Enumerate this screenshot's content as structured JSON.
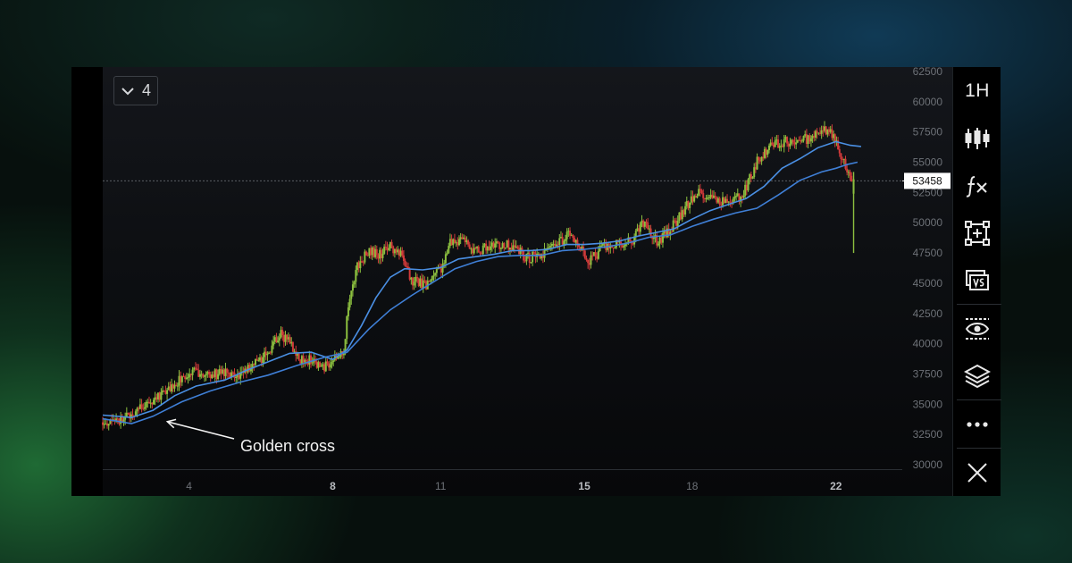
{
  "collapse_button": {
    "count": "4"
  },
  "toolbar": {
    "timeframe": "1H",
    "tools": [
      "candles-icon",
      "fx-icon",
      "crop-add-icon",
      "compare-icon",
      "visibility-icon",
      "layers-icon",
      "more-icon",
      "close-icon"
    ]
  },
  "colors": {
    "bull": "#8cbf3f",
    "bear": "#d23a3a",
    "ma_fast": "#4a8fe3",
    "ma_slow": "#3f7fd6",
    "axis_text": "#6d7177"
  },
  "chart_data": {
    "type": "candlestick",
    "title": "",
    "xlabel": "",
    "ylabel": "",
    "ylim": [
      30000,
      62500
    ],
    "grid": false,
    "y_ticks": [
      "62500",
      "60000",
      "57500",
      "55000",
      "52500",
      "50000",
      "47500",
      "45000",
      "42500",
      "40000",
      "37500",
      "35000",
      "32500",
      "30000"
    ],
    "x_ticks": [
      {
        "label": "4",
        "day": 4,
        "bold": false
      },
      {
        "label": "8",
        "day": 8,
        "bold": true
      },
      {
        "label": "11",
        "day": 11,
        "bold": false
      },
      {
        "label": "15",
        "day": 15,
        "bold": true
      },
      {
        "label": "18",
        "day": 18,
        "bold": false
      },
      {
        "label": "22",
        "day": 22,
        "bold": true
      }
    ],
    "x_range_days": [
      1.6,
      23.1
    ],
    "current_price": "53458",
    "annotations": [
      {
        "text": "Golden cross",
        "day": 3.3,
        "value": 34000
      }
    ],
    "path": [
      [
        1.6,
        33500
      ],
      [
        2.2,
        33800
      ],
      [
        2.6,
        34500
      ],
      [
        3.0,
        35300
      ],
      [
        3.4,
        36000
      ],
      [
        3.8,
        37200
      ],
      [
        4.2,
        37700
      ],
      [
        4.6,
        37400
      ],
      [
        5.0,
        37600
      ],
      [
        5.4,
        37400
      ],
      [
        5.8,
        38200
      ],
      [
        6.2,
        39200
      ],
      [
        6.5,
        40800
      ],
      [
        6.8,
        40300
      ],
      [
        7.1,
        38500
      ],
      [
        7.4,
        38800
      ],
      [
        7.7,
        38000
      ],
      [
        8.0,
        38700
      ],
      [
        8.3,
        39300
      ],
      [
        8.45,
        43500
      ],
      [
        8.7,
        46500
      ],
      [
        9.0,
        47800
      ],
      [
        9.3,
        47300
      ],
      [
        9.6,
        48000
      ],
      [
        9.9,
        47400
      ],
      [
        10.2,
        45300
      ],
      [
        10.6,
        44700
      ],
      [
        11.0,
        46200
      ],
      [
        11.3,
        48500
      ],
      [
        11.6,
        48600
      ],
      [
        12.0,
        47600
      ],
      [
        12.5,
        48300
      ],
      [
        13.0,
        48000
      ],
      [
        13.4,
        47100
      ],
      [
        13.8,
        47300
      ],
      [
        14.2,
        48300
      ],
      [
        14.6,
        49000
      ],
      [
        14.9,
        48000
      ],
      [
        15.1,
        46700
      ],
      [
        15.5,
        47900
      ],
      [
        16.0,
        48300
      ],
      [
        16.4,
        48600
      ],
      [
        16.6,
        50300
      ],
      [
        17.0,
        48400
      ],
      [
        17.4,
        49500
      ],
      [
        17.8,
        51200
      ],
      [
        18.2,
        52500
      ],
      [
        18.6,
        52100
      ],
      [
        19.0,
        51700
      ],
      [
        19.4,
        52300
      ],
      [
        19.8,
        55000
      ],
      [
        20.2,
        56400
      ],
      [
        20.6,
        56700
      ],
      [
        21.0,
        56800
      ],
      [
        21.4,
        57100
      ],
      [
        21.7,
        57800
      ],
      [
        21.9,
        57200
      ],
      [
        22.1,
        56000
      ],
      [
        22.3,
        54200
      ],
      [
        22.45,
        53000
      ]
    ],
    "final_wick_low": 47500,
    "series": [
      {
        "name": "",
        "type": "line",
        "points": [
          [
            1.6,
            34100
          ],
          [
            2.4,
            33900
          ],
          [
            3.0,
            34500
          ],
          [
            3.6,
            35700
          ],
          [
            4.2,
            36500
          ],
          [
            5.0,
            37000
          ],
          [
            5.6,
            37800
          ],
          [
            6.2,
            38500
          ],
          [
            6.8,
            39200
          ],
          [
            7.4,
            39300
          ],
          [
            8.0,
            38700
          ],
          [
            8.4,
            39500
          ],
          [
            8.8,
            41500
          ],
          [
            9.2,
            43800
          ],
          [
            9.6,
            45500
          ],
          [
            10.0,
            46200
          ],
          [
            10.5,
            46100
          ],
          [
            11.0,
            46300
          ],
          [
            11.5,
            47000
          ],
          [
            12.0,
            47200
          ],
          [
            12.5,
            47400
          ],
          [
            13.0,
            47700
          ],
          [
            13.5,
            47700
          ],
          [
            14.0,
            47800
          ],
          [
            14.5,
            48200
          ],
          [
            15.0,
            48200
          ],
          [
            15.5,
            48300
          ],
          [
            16.0,
            48500
          ],
          [
            16.5,
            48900
          ],
          [
            17.0,
            49200
          ],
          [
            17.5,
            49500
          ],
          [
            18.0,
            50300
          ],
          [
            18.5,
            51000
          ],
          [
            19.0,
            51500
          ],
          [
            19.5,
            52000
          ],
          [
            20.0,
            53000
          ],
          [
            20.5,
            54500
          ],
          [
            21.0,
            55300
          ],
          [
            21.5,
            56200
          ],
          [
            22.0,
            56700
          ],
          [
            22.4,
            56400
          ],
          [
            22.7,
            56300
          ]
        ]
      },
      {
        "name": "",
        "type": "line",
        "points": [
          [
            1.6,
            33800
          ],
          [
            2.4,
            33400
          ],
          [
            3.0,
            34000
          ],
          [
            3.8,
            35200
          ],
          [
            4.6,
            36100
          ],
          [
            5.4,
            36800
          ],
          [
            6.2,
            37400
          ],
          [
            7.0,
            38200
          ],
          [
            7.8,
            38900
          ],
          [
            8.4,
            39300
          ],
          [
            9.0,
            41200
          ],
          [
            9.6,
            42800
          ],
          [
            10.2,
            44000
          ],
          [
            10.8,
            45100
          ],
          [
            11.4,
            46200
          ],
          [
            12.0,
            46800
          ],
          [
            12.6,
            47200
          ],
          [
            13.2,
            47300
          ],
          [
            13.8,
            47300
          ],
          [
            14.4,
            47700
          ],
          [
            15.0,
            47800
          ],
          [
            15.6,
            48000
          ],
          [
            16.2,
            48300
          ],
          [
            16.8,
            48800
          ],
          [
            17.4,
            49000
          ],
          [
            18.0,
            49700
          ],
          [
            18.6,
            50300
          ],
          [
            19.2,
            50800
          ],
          [
            19.8,
            51200
          ],
          [
            20.4,
            52300
          ],
          [
            21.0,
            53500
          ],
          [
            21.6,
            54200
          ],
          [
            22.0,
            54500
          ],
          [
            22.3,
            54800
          ],
          [
            22.6,
            55000
          ]
        ]
      }
    ]
  }
}
